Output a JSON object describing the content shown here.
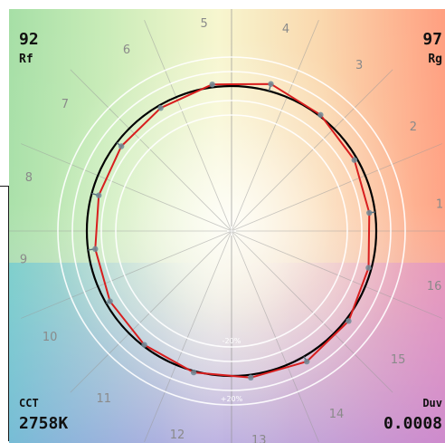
{
  "metrics": {
    "rf": {
      "value": "92",
      "label": "Rf"
    },
    "rg": {
      "value": "97",
      "label": "Rg"
    },
    "cct": {
      "label": "CCT",
      "value": "2758K"
    },
    "duv": {
      "label": "Duv",
      "value": "0.0008"
    }
  },
  "chart_data": {
    "type": "radar",
    "hue_bins": [
      "1",
      "2",
      "3",
      "4",
      "5",
      "6",
      "7",
      "8",
      "9",
      "10",
      "11",
      "12",
      "13",
      "14",
      "15",
      "16"
    ],
    "reference_radius": 1.0,
    "rings": [
      {
        "value": -0.2,
        "label": "-20%"
      },
      {
        "value": -0.1,
        "label": ""
      },
      {
        "value": 0.1,
        "label": ""
      },
      {
        "value": 0.2,
        "label": "+20%"
      }
    ],
    "test_source": {
      "radii": [
        0.96,
        0.98,
        1.01,
        1.05,
        1.02,
        0.98,
        0.96,
        0.95,
        0.95,
        0.97,
        0.99,
        1.01,
        1.02,
        1.04,
        1.02,
        0.98
      ],
      "color": "#d81e1e"
    },
    "reference_color": "#000000",
    "grid": true
  }
}
